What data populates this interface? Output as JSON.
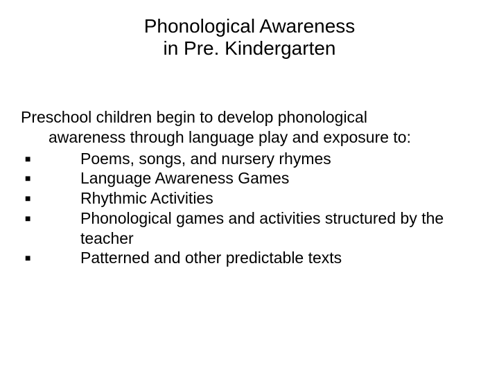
{
  "title": {
    "line1": "Phonological Awareness",
    "line2": "in Pre. Kindergarten",
    "fontsize": 28,
    "color": "#000000"
  },
  "intro": {
    "line1": "Preschool children begin to develop phonological",
    "line2": "awareness through language play and exposure to:"
  },
  "bullets": [
    {
      "text": "Poems, songs, and nursery rhymes"
    },
    {
      "text": "Language Awareness Games"
    },
    {
      "text": "Rhythmic Activities"
    },
    {
      "text": "Phonological games and activities structured by the teacher"
    },
    {
      "text": "Patterned and other predictable texts"
    }
  ],
  "bullet_marker": "■",
  "body_fontsize": 23,
  "background_color": "#ffffff",
  "text_color": "#000000"
}
